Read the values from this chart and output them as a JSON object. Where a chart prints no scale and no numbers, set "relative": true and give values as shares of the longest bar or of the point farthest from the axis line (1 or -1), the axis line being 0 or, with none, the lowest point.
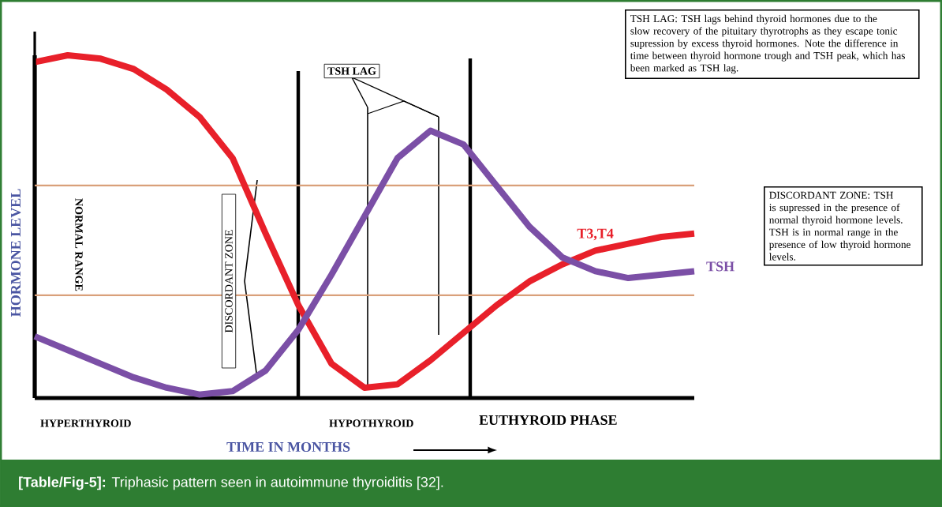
{
  "chart_data": {
    "type": "line",
    "relative": true,
    "title": "**[Table/Fig-5]:** Triphasic pattern seen in autoimmune thyroiditis [32].",
    "xlabel": "TIME IN MONTHS",
    "ylabel": "HORMONE LEVEL",
    "marker": "none",
    "line_style": "solid",
    "categories": [
      null,
      null,
      null,
      null,
      null,
      null,
      null,
      null,
      null,
      null,
      null,
      null,
      null,
      null,
      null,
      null,
      null,
      null,
      null,
      null,
      null
    ],
    "series": [
      {
        "name": "T3,T4",
        "color": "#e8202a",
        "values": [
          0.98,
          1,
          0.99,
          0.96,
          0.9,
          0.82,
          0.7,
          0.48,
          0.27,
          0.1,
          0.03,
          0.04,
          0.11,
          0.19,
          0.27,
          0.34,
          0.39,
          0.43,
          0.45,
          0.47,
          0.48
        ]
      },
      {
        "name": "TSH",
        "color": "#7b4fa6",
        "values": [
          0.18,
          0.14,
          0.1,
          0.06,
          0.03,
          0.01,
          0.02,
          0.08,
          0.2,
          0.36,
          0.53,
          0.7,
          0.78,
          0.74,
          0.62,
          0.5,
          0.41,
          0.37,
          0.35,
          0.36,
          0.37
        ]
      }
    ],
    "ref_lines": [
      {
        "axis": "y",
        "value": 0.62,
        "color": "#d9a07a"
      },
      {
        "axis": "y",
        "value": 0.3,
        "color": "#d9a07a"
      }
    ],
    "annotations": [
      "NORMAL RANGE",
      "DISCORDANT ZONE",
      "TSH LAG",
      "HYPERTHYROID",
      "HYPOTHYROID",
      "EUTHYROID PHASE",
      "TSH LAG: TSH lags behind thyroid hormones due to the slow recovery of the pituitary thyrotrophs as they escape tonic supression by excess thyroid hormones. Note the difference in time between thyroid hormone trough and TSH peak, which has been marked as TSH lag.",
      "DISCORDANT ZONE: TSH is supressed in the presence of normal thyroid hormone levels. TSH is in normal range in the presence of low thyroid hormone levels."
    ]
  }
}
